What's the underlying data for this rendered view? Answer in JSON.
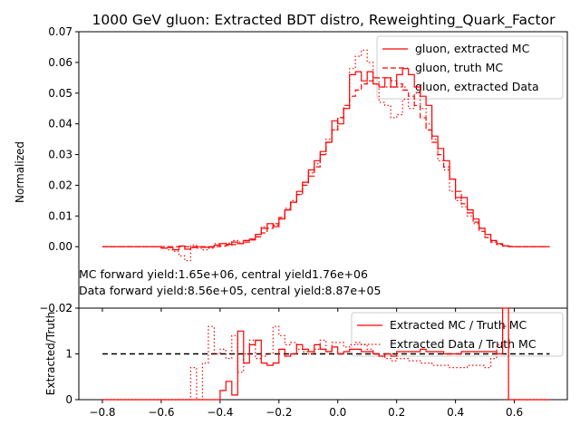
{
  "chart_data": [
    {
      "type": "line",
      "title": "1000 GeV gluon: Extracted BDT distro, Reweighting_Quark_Factor",
      "ylabel": "Normalized",
      "xlim": [
        -0.88,
        0.78
      ],
      "ylim": [
        -0.02,
        0.07
      ],
      "yticks": [
        "−0.02",
        "0.00",
        "0.01",
        "0.02",
        "0.03",
        "0.04",
        "0.05",
        "0.06",
        "0.07"
      ],
      "ytick_values": [
        -0.02,
        0.0,
        0.01,
        0.02,
        0.03,
        0.04,
        0.05,
        0.06,
        0.07
      ],
      "legend_position": "top-right",
      "annotations": [
        "MC forward yield:1.65e+06, central yield1.76e+06",
        "Data forward yield:8.56e+05, central yield:8.87e+05"
      ],
      "series": [
        {
          "name": "gluon, extracted MC",
          "style": "solid",
          "color": "#ff0000",
          "x": [
            -0.8,
            -0.78,
            -0.76,
            -0.74,
            -0.72,
            -0.7,
            -0.68,
            -0.66,
            -0.64,
            -0.62,
            -0.6,
            -0.58,
            -0.56,
            -0.54,
            -0.52,
            -0.5,
            -0.48,
            -0.46,
            -0.44,
            -0.42,
            -0.4,
            -0.38,
            -0.36,
            -0.34,
            -0.32,
            -0.3,
            -0.28,
            -0.26,
            -0.24,
            -0.22,
            -0.2,
            -0.18,
            -0.16,
            -0.14,
            -0.12,
            -0.1,
            -0.08,
            -0.06,
            -0.04,
            -0.02,
            0.0,
            0.02,
            0.04,
            0.06,
            0.08,
            0.1,
            0.12,
            0.14,
            0.16,
            0.18,
            0.2,
            0.22,
            0.24,
            0.26,
            0.28,
            0.3,
            0.32,
            0.34,
            0.36,
            0.38,
            0.4,
            0.42,
            0.44,
            0.46,
            0.48,
            0.5,
            0.52,
            0.54,
            0.56,
            0.58,
            0.6,
            0.62,
            0.64,
            0.66,
            0.68,
            0.7
          ],
          "y": [
            0.0,
            0.0,
            0.0,
            0.0,
            0.0,
            0.0,
            0.0,
            0.0,
            0.0,
            0.0,
            -0.0005,
            -0.0003,
            -0.001,
            0.0002,
            -0.0008,
            -0.0003,
            0.0,
            -0.0002,
            -0.0001,
            0.0005,
            0.001,
            0.0008,
            0.0015,
            0.001,
            0.002,
            0.0025,
            0.004,
            0.006,
            0.0075,
            0.0065,
            0.009,
            0.012,
            0.0145,
            0.018,
            0.021,
            0.025,
            0.028,
            0.031,
            0.034,
            0.041,
            0.04,
            0.045,
            0.056,
            0.057,
            0.054,
            0.057,
            0.053,
            0.052,
            0.055,
            0.052,
            0.056,
            0.058,
            0.056,
            0.052,
            0.049,
            0.046,
            0.036,
            0.032,
            0.028,
            0.022,
            0.016,
            0.016,
            0.012,
            0.009,
            0.006,
            0.004,
            0.002,
            0.001,
            0.0003,
            0.0,
            0.0,
            0.0,
            0.0,
            0.0,
            0.0,
            0.0
          ]
        },
        {
          "name": "gluon, truth MC",
          "style": "dashed",
          "color": "#ff0000",
          "x": [
            -0.8,
            -0.78,
            -0.76,
            -0.74,
            -0.72,
            -0.7,
            -0.68,
            -0.66,
            -0.64,
            -0.62,
            -0.6,
            -0.58,
            -0.56,
            -0.54,
            -0.52,
            -0.5,
            -0.48,
            -0.46,
            -0.44,
            -0.42,
            -0.4,
            -0.38,
            -0.36,
            -0.34,
            -0.32,
            -0.3,
            -0.28,
            -0.26,
            -0.24,
            -0.22,
            -0.2,
            -0.18,
            -0.16,
            -0.14,
            -0.12,
            -0.1,
            -0.08,
            -0.06,
            -0.04,
            -0.02,
            0.0,
            0.02,
            0.04,
            0.06,
            0.08,
            0.1,
            0.12,
            0.14,
            0.16,
            0.18,
            0.2,
            0.22,
            0.24,
            0.26,
            0.28,
            0.3,
            0.32,
            0.34,
            0.36,
            0.38,
            0.4,
            0.42,
            0.44,
            0.46,
            0.48,
            0.5,
            0.52,
            0.54,
            0.56,
            0.58,
            0.6,
            0.62,
            0.64,
            0.66,
            0.68,
            0.7
          ],
          "y": [
            0.0,
            0.0,
            0.0,
            0.0,
            0.0,
            0.0,
            0.0,
            0.0,
            0.0,
            0.0,
            0.0,
            0.0,
            0.0,
            0.0,
            0.0,
            0.0,
            0.0,
            0.0,
            0.0,
            0.0,
            0.0002,
            0.0004,
            0.0007,
            0.001,
            0.0015,
            0.0022,
            0.0032,
            0.0045,
            0.006,
            0.0075,
            0.0095,
            0.012,
            0.0145,
            0.017,
            0.02,
            0.023,
            0.026,
            0.03,
            0.034,
            0.038,
            0.042,
            0.046,
            0.049,
            0.051,
            0.053,
            0.054,
            0.055,
            0.055,
            0.055,
            0.054,
            0.053,
            0.051,
            0.049,
            0.046,
            0.042,
            0.038,
            0.034,
            0.03,
            0.026,
            0.022,
            0.018,
            0.014,
            0.011,
            0.008,
            0.005,
            0.003,
            0.0015,
            0.0007,
            0.0002,
            0.0001,
            0.0,
            0.0,
            0.0,
            0.0,
            0.0,
            0.0
          ]
        },
        {
          "name": "gluon, extracted Data",
          "style": "dotted",
          "color": "#ff0000",
          "x": [
            -0.8,
            -0.78,
            -0.76,
            -0.74,
            -0.72,
            -0.7,
            -0.68,
            -0.66,
            -0.64,
            -0.62,
            -0.6,
            -0.58,
            -0.56,
            -0.54,
            -0.52,
            -0.5,
            -0.48,
            -0.46,
            -0.44,
            -0.42,
            -0.4,
            -0.38,
            -0.36,
            -0.34,
            -0.32,
            -0.3,
            -0.28,
            -0.26,
            -0.24,
            -0.22,
            -0.2,
            -0.18,
            -0.16,
            -0.14,
            -0.12,
            -0.1,
            -0.08,
            -0.06,
            -0.04,
            -0.02,
            0.0,
            0.02,
            0.04,
            0.06,
            0.08,
            0.1,
            0.12,
            0.14,
            0.16,
            0.18,
            0.2,
            0.22,
            0.24,
            0.26,
            0.28,
            0.3,
            0.32,
            0.34,
            0.36,
            0.38,
            0.4,
            0.42,
            0.44,
            0.46,
            0.48,
            0.5,
            0.52,
            0.54,
            0.56,
            0.58,
            0.6,
            0.62,
            0.64,
            0.66,
            0.68,
            0.7
          ],
          "y": [
            0.0,
            0.0,
            0.0,
            0.0,
            0.0,
            0.0,
            0.0,
            0.0,
            0.0,
            0.0,
            -0.0005,
            -0.001,
            -0.0015,
            -0.003,
            -0.0045,
            0.0005,
            -0.0005,
            -0.001,
            -0.0005,
            0.001,
            0.001,
            0.0012,
            0.002,
            0.0015,
            0.002,
            0.0025,
            0.004,
            0.0065,
            0.0075,
            0.007,
            0.0095,
            0.0125,
            0.015,
            0.017,
            0.021,
            0.024,
            0.027,
            0.03,
            0.035,
            0.038,
            0.042,
            0.045,
            0.058,
            0.062,
            0.064,
            0.06,
            0.055,
            0.047,
            0.046,
            0.042,
            0.043,
            0.048,
            0.045,
            0.05,
            0.045,
            0.04,
            0.035,
            0.028,
            0.025,
            0.018,
            0.015,
            0.013,
            0.01,
            0.0075,
            0.006,
            0.004,
            0.0015,
            0.0008,
            0.0002,
            0.0,
            0.0,
            0.0,
            0.0,
            0.0,
            0.0,
            0.0
          ]
        }
      ]
    },
    {
      "type": "line",
      "ylabel": "Extracted/Truth",
      "xlim": [
        -0.88,
        0.78
      ],
      "ylim": [
        0,
        2
      ],
      "xticks": [
        "−0.8",
        "−0.6",
        "−0.4",
        "−0.2",
        "0.0",
        "0.2",
        "0.4",
        "0.6"
      ],
      "xtick_values": [
        -0.8,
        -0.6,
        -0.4,
        -0.2,
        0.0,
        0.2,
        0.4,
        0.6
      ],
      "yticks": [
        "0",
        "1",
        "2"
      ],
      "ytick_values": [
        0,
        1,
        2
      ],
      "legend_position": "top-right",
      "reference_line": {
        "y": 1,
        "style": "dashed",
        "color": "#000000"
      },
      "series": [
        {
          "name": "Extracted MC / Truth MC",
          "style": "solid",
          "color": "#ff0000",
          "x": [
            -0.8,
            -0.78,
            -0.76,
            -0.74,
            -0.72,
            -0.7,
            -0.68,
            -0.66,
            -0.64,
            -0.62,
            -0.6,
            -0.58,
            -0.56,
            -0.54,
            -0.52,
            -0.5,
            -0.48,
            -0.46,
            -0.44,
            -0.42,
            -0.4,
            -0.38,
            -0.36,
            -0.34,
            -0.32,
            -0.3,
            -0.28,
            -0.26,
            -0.24,
            -0.22,
            -0.2,
            -0.18,
            -0.16,
            -0.14,
            -0.12,
            -0.1,
            -0.08,
            -0.06,
            -0.04,
            -0.02,
            0.0,
            0.02,
            0.04,
            0.06,
            0.08,
            0.1,
            0.12,
            0.14,
            0.16,
            0.18,
            0.2,
            0.22,
            0.24,
            0.26,
            0.28,
            0.3,
            0.32,
            0.34,
            0.36,
            0.38,
            0.4,
            0.42,
            0.44,
            0.46,
            0.48,
            0.5,
            0.52,
            0.54,
            0.56,
            0.58,
            0.6,
            0.62,
            0.64,
            0.66,
            0.68,
            0.7
          ],
          "y": [
            0,
            0,
            0,
            0,
            0,
            0,
            0,
            0,
            0,
            0,
            0,
            0,
            0,
            0,
            0,
            0,
            0,
            0,
            0,
            0,
            0.2,
            0.4,
            0.1,
            1.5,
            0.8,
            1.2,
            1.3,
            0.8,
            0.75,
            0.8,
            1.1,
            0.95,
            1.0,
            1.2,
            1.1,
            1.05,
            1.2,
            1.1,
            1.05,
            1.15,
            1.0,
            1.05,
            1.1,
            1.1,
            1.05,
            1.05,
            1.0,
            0.95,
            1.0,
            0.95,
            1.05,
            1.05,
            1.05,
            1.05,
            1.1,
            1.05,
            1.05,
            1.05,
            1.0,
            1.0,
            1.0,
            1.05,
            1.05,
            1.05,
            1.05,
            1.05,
            1.05,
            1.0,
            2.0,
            0.0,
            0,
            0,
            0,
            0,
            0,
            0
          ]
        },
        {
          "name": "Extracted Data / Truth MC",
          "style": "dotted",
          "color": "#ff0000",
          "x": [
            -0.8,
            -0.78,
            -0.76,
            -0.74,
            -0.72,
            -0.7,
            -0.68,
            -0.66,
            -0.64,
            -0.62,
            -0.6,
            -0.58,
            -0.56,
            -0.54,
            -0.52,
            -0.5,
            -0.48,
            -0.46,
            -0.44,
            -0.42,
            -0.4,
            -0.38,
            -0.36,
            -0.34,
            -0.32,
            -0.3,
            -0.28,
            -0.26,
            -0.24,
            -0.22,
            -0.2,
            -0.18,
            -0.16,
            -0.14,
            -0.12,
            -0.1,
            -0.08,
            -0.06,
            -0.04,
            -0.02,
            0.0,
            0.02,
            0.04,
            0.06,
            0.08,
            0.1,
            0.12,
            0.14,
            0.16,
            0.18,
            0.2,
            0.22,
            0.24,
            0.26,
            0.28,
            0.3,
            0.32,
            0.34,
            0.36,
            0.38,
            0.4,
            0.42,
            0.44,
            0.46,
            0.48,
            0.5,
            0.52,
            0.54,
            0.56,
            0.58,
            0.6,
            0.62,
            0.64,
            0.66,
            0.68,
            0.7
          ],
          "y": [
            0,
            0,
            0,
            0,
            0,
            0,
            0,
            0,
            0,
            0,
            0,
            0,
            0,
            0,
            0,
            0.7,
            0.0,
            0.8,
            1.6,
            1.0,
            1.1,
            0.9,
            1.4,
            0.6,
            1.0,
            1.3,
            0.9,
            0.95,
            1.0,
            1.6,
            1.4,
            1.2,
            1.25,
            1.1,
            1.05,
            1.0,
            1.1,
            1.3,
            1.05,
            1.25,
            1.25,
            1.15,
            1.2,
            1.25,
            1.2,
            1.1,
            1.0,
            0.95,
            0.9,
            0.85,
            0.9,
            0.9,
            0.85,
            0.85,
            0.8,
            0.8,
            0.75,
            0.75,
            0.75,
            0.7,
            0.7,
            0.7,
            0.75,
            0.75,
            0.75,
            0.7,
            0.9,
            1.2,
            1.6,
            0.0,
            0,
            0,
            0,
            0,
            0,
            0
          ]
        }
      ]
    }
  ]
}
